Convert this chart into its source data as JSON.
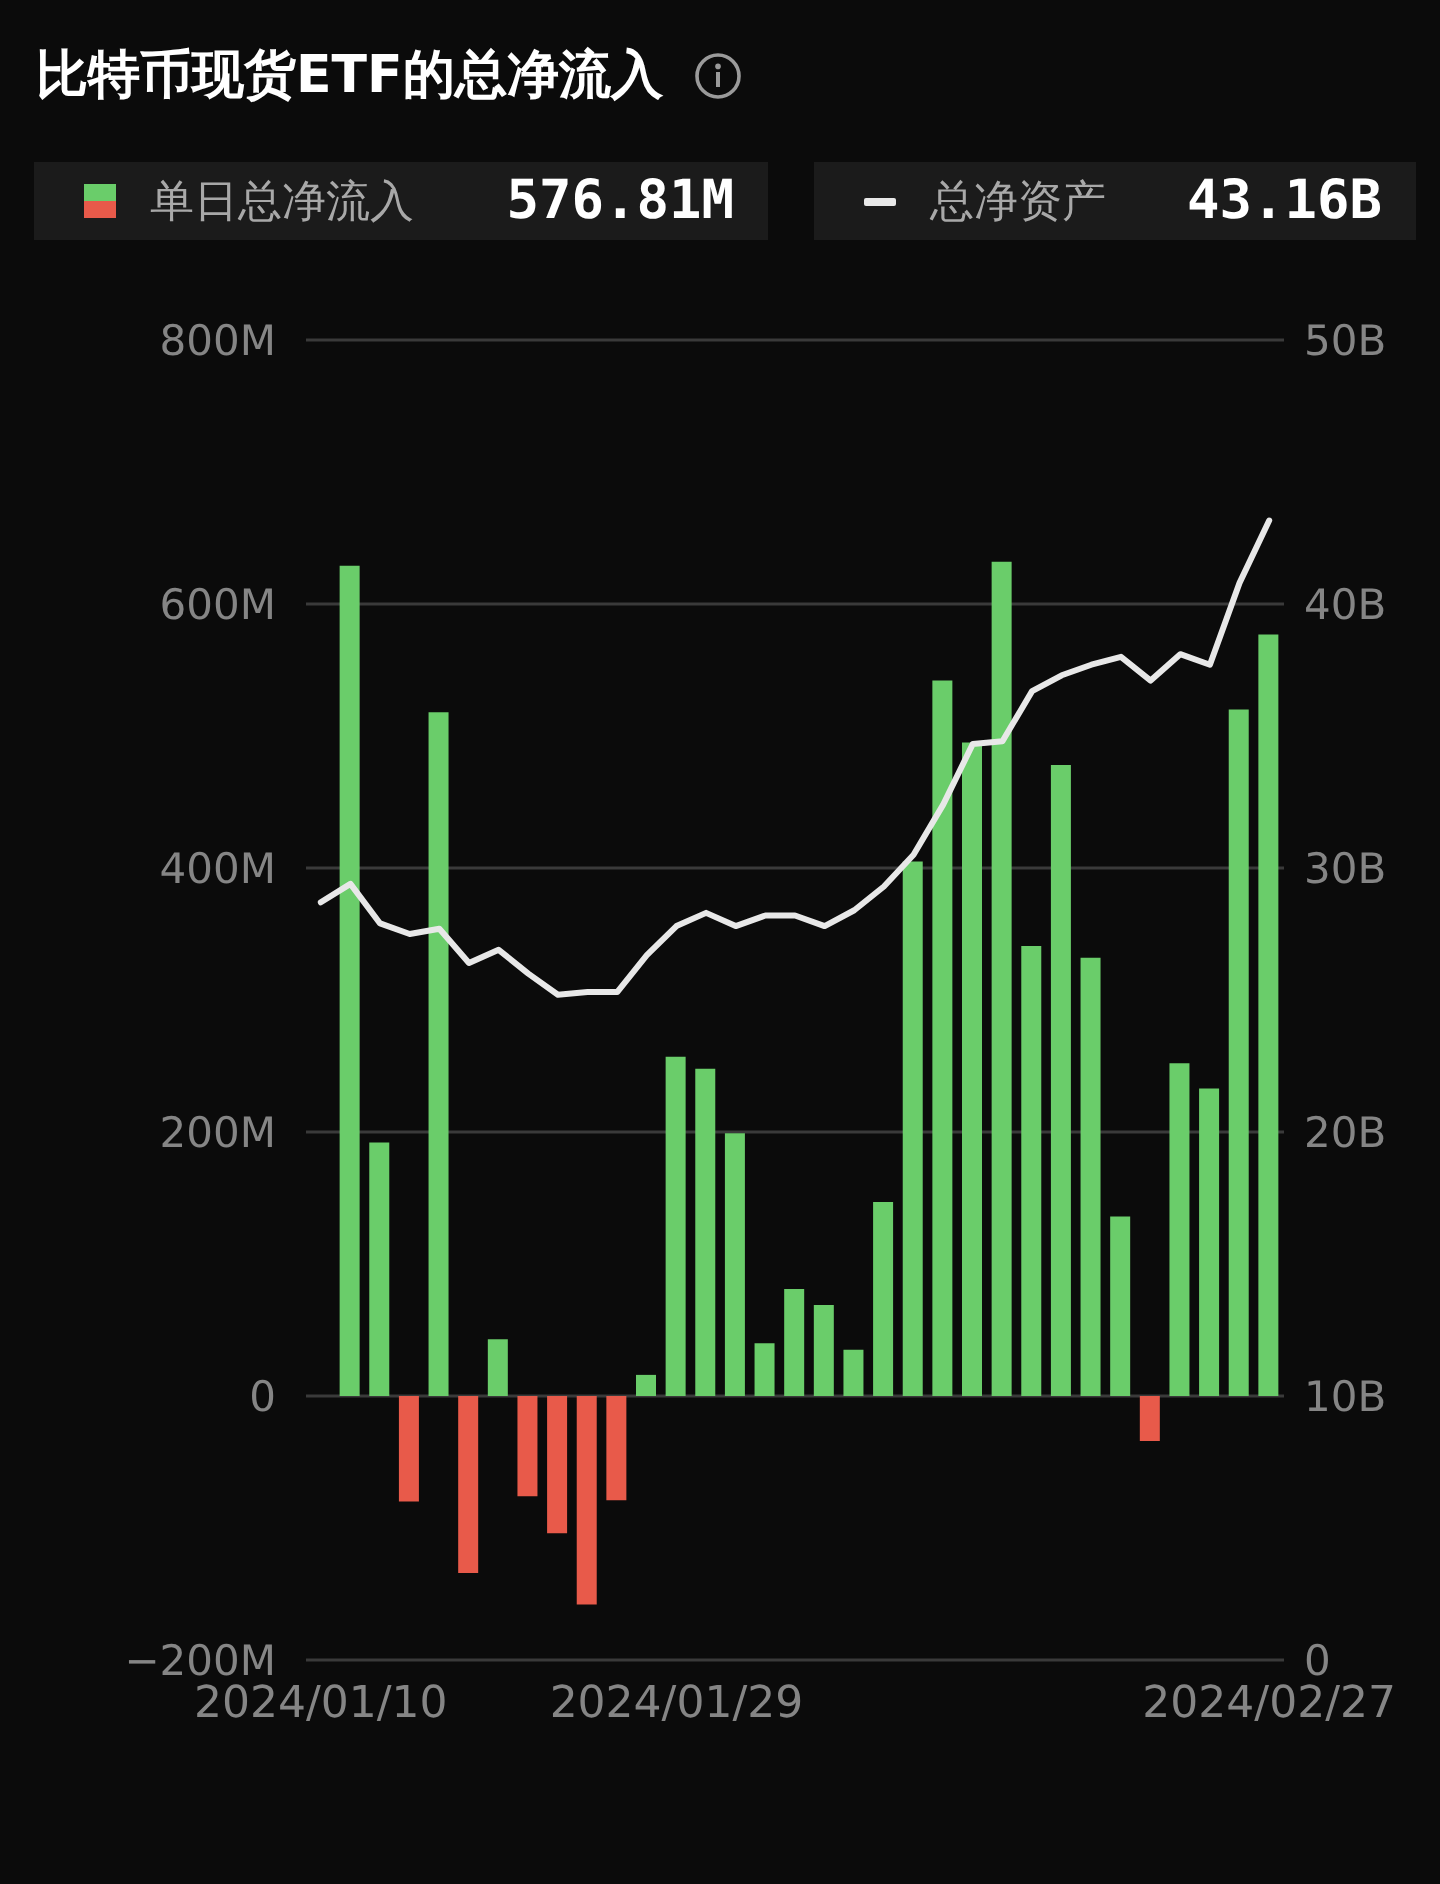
{
  "chart_data": {
    "type": "bar",
    "title": "比特币现货ETF的总净流入",
    "categories": [
      "2024/01/10",
      null,
      null,
      null,
      null,
      null,
      null,
      null,
      null,
      null,
      null,
      null,
      "2024/01/29",
      null,
      null,
      null,
      null,
      null,
      null,
      null,
      null,
      null,
      null,
      null,
      null,
      null,
      null,
      null,
      null,
      null,
      null,
      null,
      "2024/02/27"
    ],
    "series": [
      {
        "name": "单日总净流入",
        "values": [
          null,
          629,
          192,
          -80,
          518,
          -134,
          43,
          -76,
          -104,
          -158,
          -79,
          16,
          257,
          248,
          199,
          40,
          81,
          69,
          35,
          147,
          405,
          542,
          495,
          632,
          341,
          478,
          332,
          136,
          -34,
          252,
          233,
          520,
          576.81
        ],
        "colors": [
          null,
          "#6acd6a",
          "#6acd6a",
          "#e85a4a",
          "#6acd6a",
          "#e85a4a",
          "#6acd6a",
          "#e85a4a",
          "#e85a4a",
          "#e85a4a",
          "#e85a4a",
          "#6acd6a",
          "#6acd6a",
          "#6acd6a",
          "#6acd6a",
          "#6acd6a",
          "#6acd6a",
          "#6acd6a",
          "#6acd6a",
          "#6acd6a",
          "#6acd6a",
          "#6acd6a",
          "#6acd6a",
          "#6acd6a",
          "#6acd6a",
          "#6acd6a",
          "#6acd6a",
          "#6acd6a",
          "#e85a4a",
          "#6acd6a",
          "#6acd6a",
          "#6acd6a",
          "#6acd6a"
        ]
      },
      {
        "name": "总净资产",
        "type": "line",
        "axis": "y2",
        "color": "#e8e8e8",
        "values": [
          28.7,
          29.4,
          27.9,
          27.5,
          27.7,
          26.4,
          26.9,
          26.0,
          25.2,
          25.3,
          25.3,
          26.7,
          27.8,
          28.3,
          27.8,
          28.2,
          28.2,
          27.8,
          28.4,
          29.3,
          30.5,
          32.4,
          34.7,
          34.8,
          36.7,
          37.3,
          37.7,
          38.0,
          37.1,
          38.1,
          37.7,
          40.8,
          43.16
        ]
      }
    ],
    "ylim": [
      -200,
      800
    ],
    "yticks": [
      {
        "value": -200,
        "label": "−200M"
      },
      0,
      {
        "value": 200,
        "label": "200M"
      },
      {
        "value": 400,
        "label": "400M"
      },
      {
        "value": 600,
        "label": "600M"
      },
      {
        "value": 800,
        "label": "800M"
      }
    ],
    "y2lim": [
      0,
      50
    ],
    "y2ticks": [
      0,
      {
        "value": 10,
        "label": "10B"
      },
      {
        "value": 20,
        "label": "20B"
      },
      {
        "value": 30,
        "label": "30B"
      },
      {
        "value": 40,
        "label": "40B"
      },
      {
        "value": 50,
        "label": "50B"
      }
    ],
    "grid": "y",
    "legend": "top",
    "marker": "none",
    "annotations": [
      "576.81M",
      "43.16B"
    ]
  }
}
